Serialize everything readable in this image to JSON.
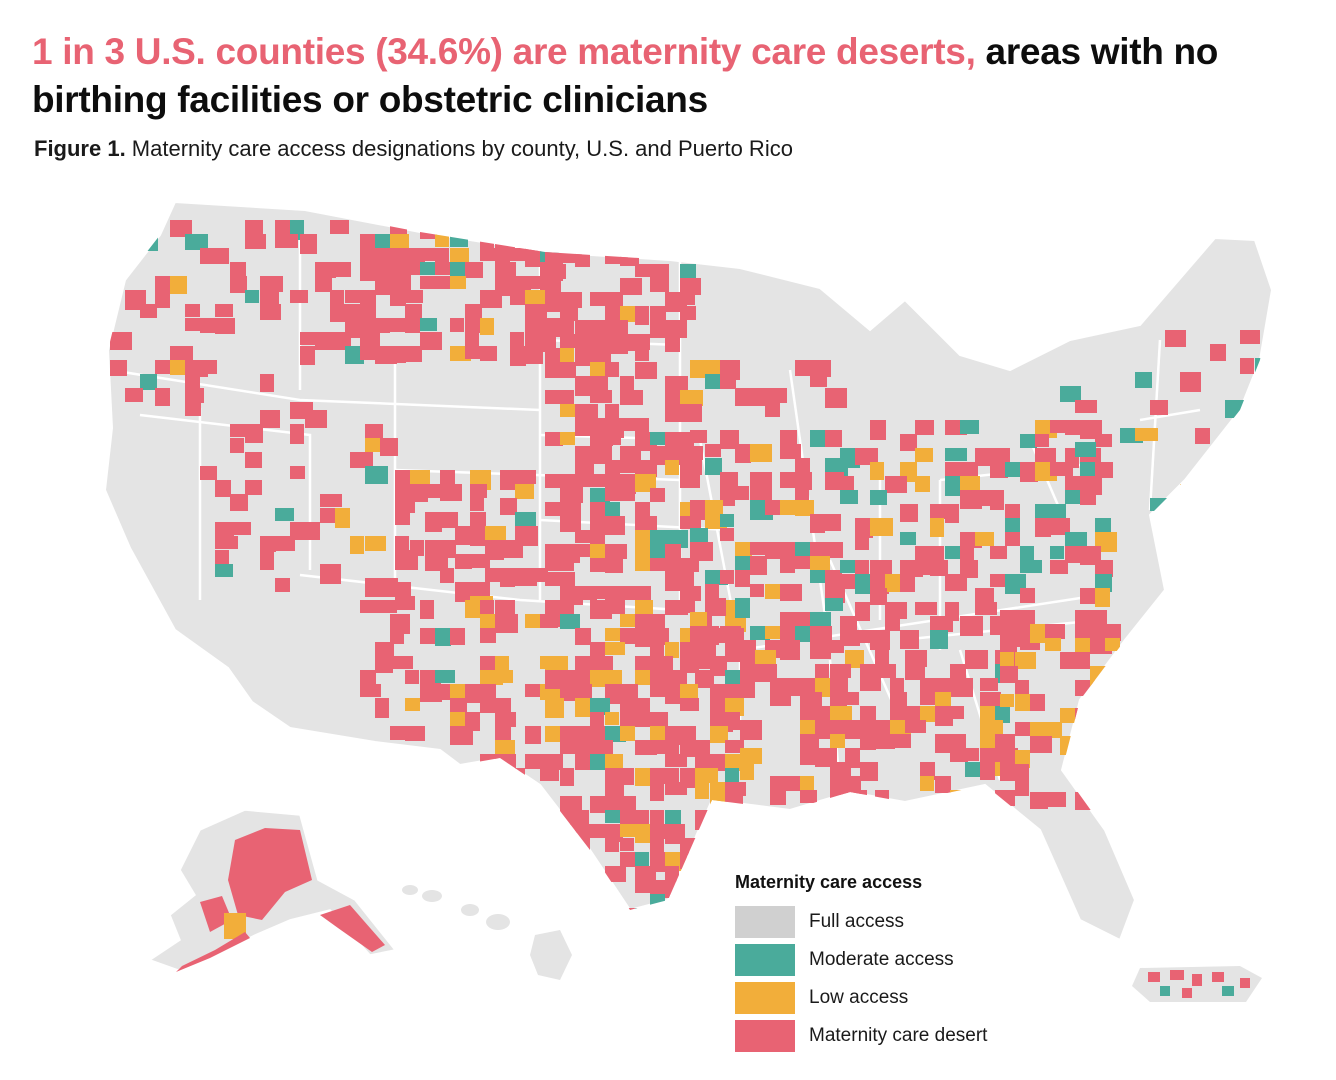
{
  "headline": {
    "highlight": "1 in 3 U.S. counties (34.6%) are maternity care deserts,",
    "rest": " areas with no birthing facilities or obstetric clinicians"
  },
  "caption": {
    "label": "Figure 1.",
    "text": " Maternity care access designations by county, U.S. and Puerto Rico"
  },
  "legend": {
    "title": "Maternity care access",
    "items": [
      {
        "label": "Full access",
        "color": "#d0d0d0"
      },
      {
        "label": "Moderate access",
        "color": "#4aab9b"
      },
      {
        "label": "Low access",
        "color": "#f2ae3a"
      },
      {
        "label": "Maternity care desert",
        "color": "#e86373"
      }
    ]
  },
  "colors": {
    "land": "#e4e4e4",
    "border": "#ffffff",
    "desert": "#e86373",
    "moderate": "#4aab9b",
    "low": "#f2ae3a"
  }
}
